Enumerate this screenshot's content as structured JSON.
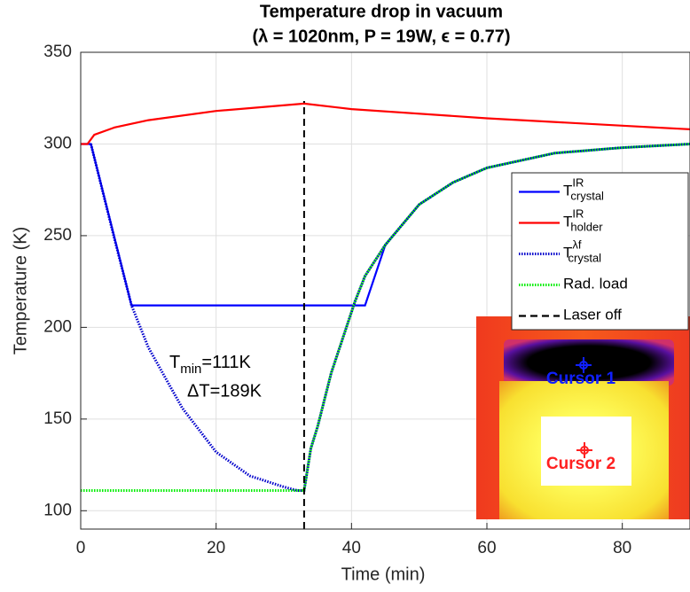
{
  "chart_data": {
    "type": "line",
    "title": [
      "Temperature drop in vacuum",
      "(λ = 1020nm, P = 19W, ϵ = 0.77)"
    ],
    "x_label": "Time (min)",
    "y_label": "Temperature (K)",
    "xlim": [
      0,
      90
    ],
    "xticks": [
      0,
      20,
      40,
      60,
      80
    ],
    "ylim": [
      90,
      350
    ],
    "yticks": [
      100,
      150,
      200,
      250,
      300,
      350
    ],
    "grid": true,
    "legend": "upper right",
    "series": [
      {
        "name": "T",
        "name_sup": "IR",
        "name_sub": "crystal",
        "color": "#0000ff",
        "style": "solid",
        "x": [
          0,
          1.5,
          7.5,
          42,
          45,
          50,
          55,
          60,
          70,
          80,
          90
        ],
        "values": [
          300,
          300,
          212,
          212,
          245,
          267,
          279,
          287,
          295,
          298,
          300
        ]
      },
      {
        "name": "T",
        "name_sup": "IR",
        "name_sub": "holder",
        "color": "#ff0000",
        "style": "solid",
        "x": [
          0,
          1,
          2,
          5,
          10,
          20,
          33,
          40,
          60,
          80,
          90
        ],
        "values": [
          300,
          300,
          305,
          309,
          313,
          318,
          322,
          319,
          314,
          310,
          308
        ]
      },
      {
        "name": "T",
        "name_sup": "λf",
        "name_sub": "crystal",
        "color": "#0000cc",
        "style": "dotted",
        "x": [
          1.5,
          5,
          7.5,
          10,
          15,
          20,
          25,
          30,
          32,
          33,
          34,
          35,
          37,
          40.5,
          42,
          45,
          50,
          55,
          60,
          70,
          80,
          90
        ],
        "values": [
          300,
          248,
          212,
          189,
          156,
          132,
          119,
          113,
          111,
          111,
          134,
          146,
          175,
          214,
          228,
          245,
          267,
          279,
          287,
          295,
          298,
          300
        ]
      },
      {
        "name": "Rad. load",
        "color": "#00ee00",
        "style": "dotted",
        "x": [
          0,
          33,
          34,
          35,
          37,
          40.5,
          42,
          45,
          50,
          55,
          60,
          70,
          80,
          90
        ],
        "values": [
          111,
          111,
          134,
          146,
          175,
          214,
          228,
          245,
          267,
          279,
          287,
          295,
          298,
          300
        ]
      }
    ],
    "vline": {
      "name": "Laser off",
      "x": 33,
      "color": "#000000"
    },
    "annotations": [
      {
        "text": "T",
        "sub": "min",
        "rest": "=111K"
      },
      {
        "text": "ΔT=189K"
      }
    ],
    "inset": {
      "labels": [
        "Cursor 1",
        "Cursor 2"
      ]
    }
  }
}
